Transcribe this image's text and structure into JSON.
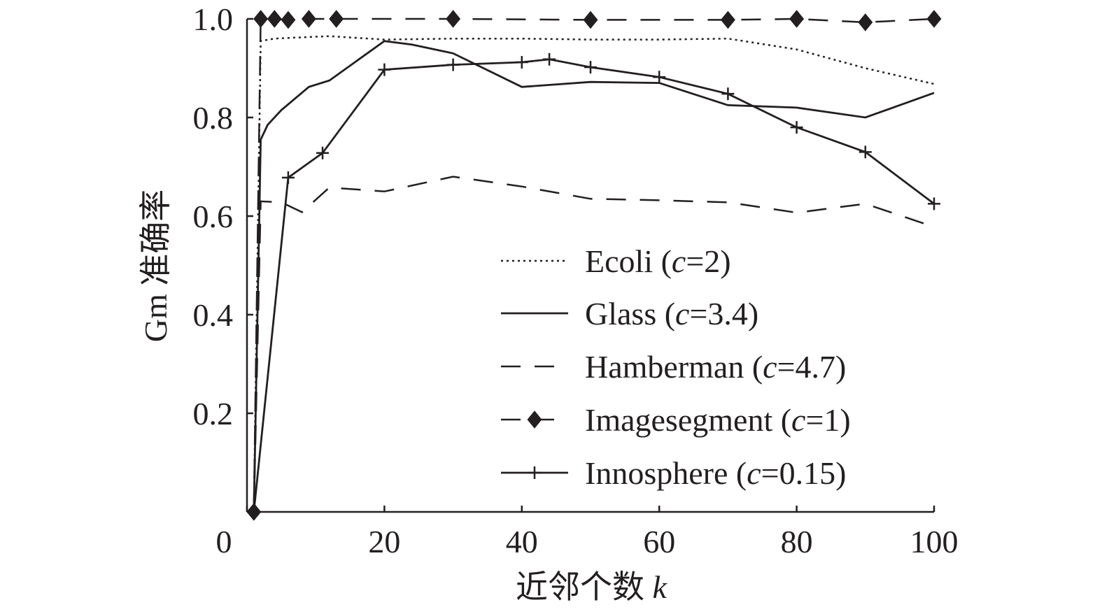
{
  "chart_data": {
    "type": "line",
    "title": "",
    "xlabel": "近邻个数",
    "xlabel_var": "k",
    "ylabel": "Gm 准确率",
    "xlim": [
      0,
      100
    ],
    "ylim": [
      0,
      1.0
    ],
    "x_ticks": [
      0,
      20,
      40,
      60,
      80,
      100
    ],
    "y_ticks": [
      0.2,
      0.4,
      0.6,
      0.8,
      1.0
    ],
    "x_tick_labels": [
      "0",
      "20",
      "40",
      "60",
      "80",
      "100"
    ],
    "y_tick_labels": [
      "0.2",
      "0.4",
      "0.6",
      "0.8",
      "1.0"
    ],
    "grid": false,
    "legend_position": "bottom-right",
    "color": "#231f20",
    "series": [
      {
        "name": "Ecoli",
        "param": "c",
        "param_value": "2",
        "style": "dotted",
        "marker": "none",
        "x": [
          1,
          2,
          4,
          7,
          12,
          20,
          30,
          40,
          50,
          60,
          70,
          80,
          90,
          100
        ],
        "y": [
          0.0,
          0.955,
          0.96,
          0.962,
          0.965,
          0.958,
          0.96,
          0.96,
          0.958,
          0.958,
          0.96,
          0.938,
          0.9,
          0.868
        ]
      },
      {
        "name": "Glass",
        "param": "c",
        "param_value": "3.4",
        "style": "solid",
        "marker": "none",
        "x": [
          1,
          2,
          3,
          5,
          9,
          12,
          20,
          24,
          30,
          40,
          50,
          60,
          70,
          80,
          90,
          100
        ],
        "y": [
          0.0,
          0.755,
          0.785,
          0.815,
          0.862,
          0.875,
          0.955,
          0.948,
          0.93,
          0.862,
          0.872,
          0.87,
          0.825,
          0.82,
          0.8,
          0.85
        ]
      },
      {
        "name": "Hamberman",
        "param": "c",
        "param_value": "4.7",
        "style": "dashed",
        "marker": "none",
        "x": [
          1,
          2,
          5,
          8,
          12,
          20,
          30,
          40,
          50,
          60,
          70,
          80,
          90,
          100
        ],
        "y": [
          0.0,
          0.63,
          0.628,
          0.608,
          0.658,
          0.65,
          0.68,
          0.66,
          0.635,
          0.632,
          0.628,
          0.607,
          0.625,
          0.578
        ]
      },
      {
        "name": "Imagesegment",
        "param": "c",
        "param_value": "1",
        "style": "dashed",
        "marker": "diamond",
        "x": [
          1,
          2,
          4,
          6,
          9,
          13,
          30,
          50,
          70,
          80,
          90,
          100
        ],
        "y": [
          0.0,
          1.0,
          1.0,
          0.998,
          1.0,
          1.0,
          1.0,
          0.998,
          0.998,
          1.0,
          0.993,
          1.0
        ]
      },
      {
        "name": "Innosphere",
        "param": "c",
        "param_value": "0.15",
        "style": "solid",
        "marker": "plus",
        "x": [
          1,
          6,
          11,
          20,
          30,
          40,
          44,
          50,
          60,
          70,
          80,
          90,
          100
        ],
        "y": [
          0.0,
          0.678,
          0.728,
          0.897,
          0.907,
          0.912,
          0.918,
          0.902,
          0.882,
          0.848,
          0.78,
          0.73,
          0.625
        ]
      }
    ]
  }
}
